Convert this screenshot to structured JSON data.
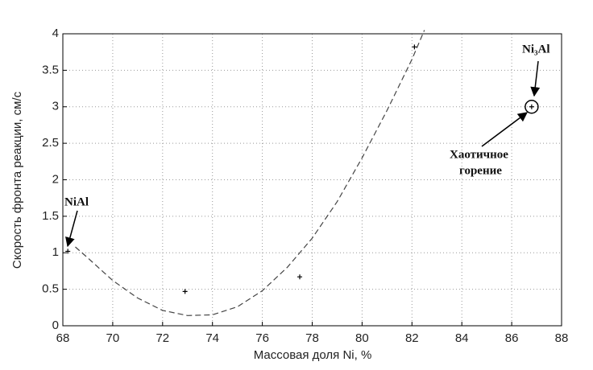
{
  "chart_data": {
    "type": "scatter",
    "x_label": "Массовая доля Ni, %",
    "y_label": "Скорость фронта реакции, см/с",
    "xlim": [
      68,
      88
    ],
    "xticks": [
      68,
      70,
      72,
      74,
      76,
      78,
      80,
      82,
      84,
      86,
      88
    ],
    "ylim": [
      0,
      4
    ],
    "yticks": [
      0,
      0.5,
      1,
      1.5,
      2,
      2.5,
      3,
      3.5,
      4
    ],
    "grid": true,
    "series": [
      {
        "x": [
          68.2,
          72.9,
          77.5,
          82.1,
          86.8
        ],
        "values": [
          1.02,
          0.47,
          0.67,
          3.82,
          3.0
        ],
        "color": "#000000",
        "marker": "+",
        "circled_points": [
          4
        ]
      },
      {
        "x": [
          68.5,
          69,
          70,
          71,
          72,
          73,
          74,
          75,
          76,
          77,
          78,
          79,
          80,
          81,
          82,
          82.5
        ],
        "values": [
          1.08,
          0.93,
          0.62,
          0.38,
          0.21,
          0.14,
          0.15,
          0.26,
          0.48,
          0.8,
          1.2,
          1.7,
          2.3,
          2.95,
          3.65,
          4.05
        ],
        "color": "#444444",
        "line_style": "dashed"
      }
    ],
    "annotations": [
      {
        "text_lines": [
          "NiAl"
        ]
      },
      {
        "text_lines": [
          "Ni₃Al"
        ]
      },
      {
        "text_lines": [
          "Хаотичное",
          "горение"
        ]
      }
    ]
  }
}
